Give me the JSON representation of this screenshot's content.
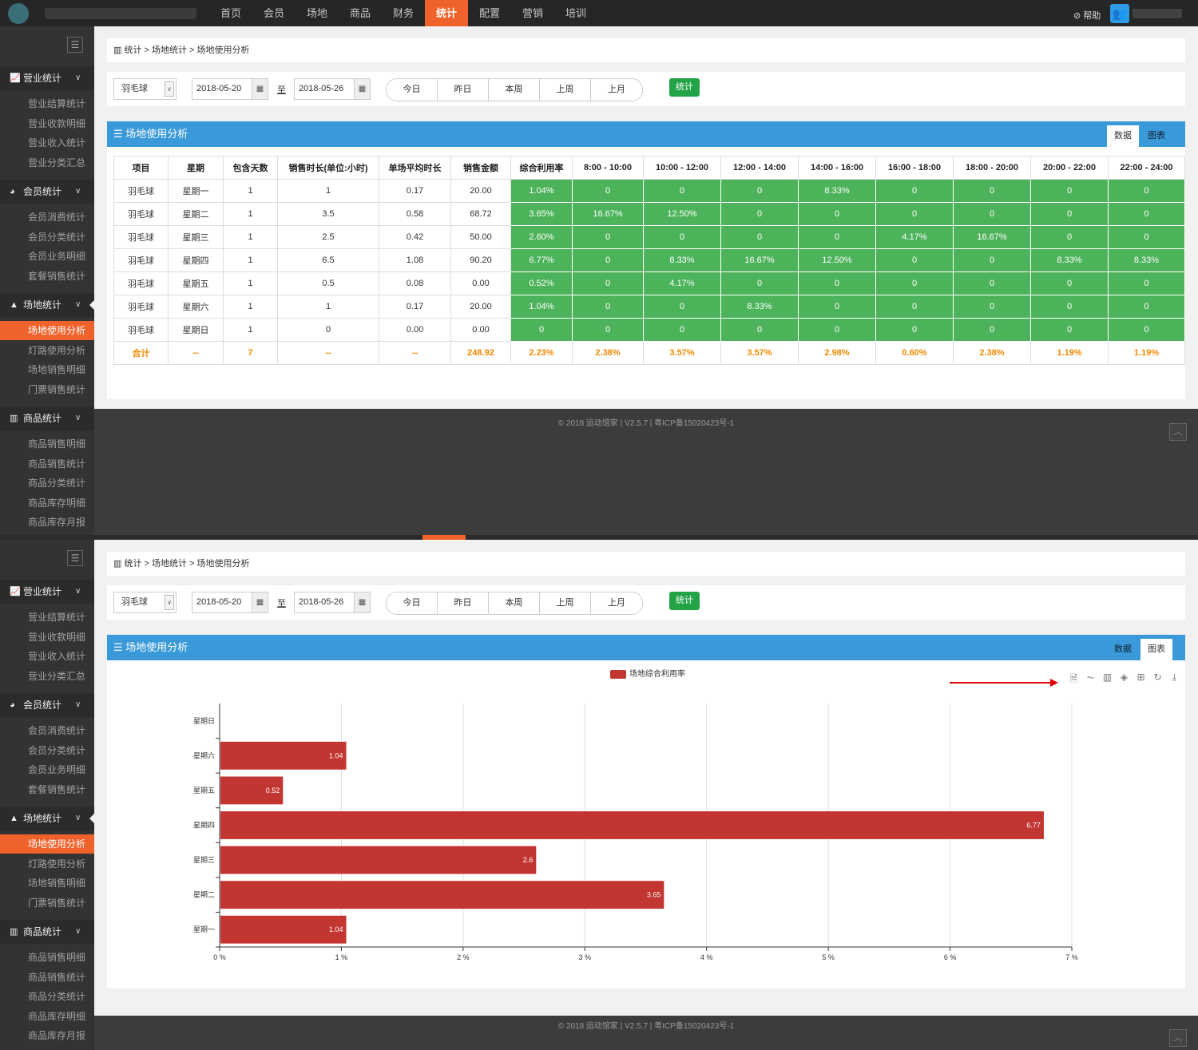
{
  "nav": [
    "首页",
    "会员",
    "场地",
    "商品",
    "财务",
    "统计",
    "配置",
    "营销",
    "培训"
  ],
  "nav_active": 5,
  "help": "⊘ 帮助",
  "sidebar": {
    "toggle": "☰",
    "groups": [
      {
        "icon": "line-chart-icon",
        "glyph": "📈",
        "label": "营业统计",
        "items": [
          "营业结算统计",
          "营业收款明细",
          "营业收入统计",
          "营业分类汇总"
        ]
      },
      {
        "icon": "pie-chart-icon",
        "glyph": "◕",
        "label": "会员统计",
        "items": [
          "会员消费统计",
          "会员分类统计",
          "会员业务明细",
          "套餐销售统计"
        ]
      },
      {
        "icon": "area-chart-icon",
        "glyph": "▲",
        "label": "场地统计",
        "items": [
          "场地使用分析",
          "灯路使用分析",
          "场地销售明细",
          "门票销售统计"
        ]
      },
      {
        "icon": "bar-chart-icon",
        "glyph": "▥",
        "label": "商品统计",
        "items": [
          "商品销售明细",
          "商品销售统计",
          "商品分类统计",
          "商品库存明细",
          "商品库存月报"
        ]
      }
    ],
    "active_item": "场地使用分析"
  },
  "breadcrumb": "▥ 统计 > 场地统计 > 场地使用分析",
  "filter": {
    "sport": "羽毛球",
    "start": "2018-05-20",
    "to": "至",
    "end": "2018-05-26",
    "quick": [
      "今日",
      "昨日",
      "本周",
      "上周",
      "上月"
    ],
    "submit": "统计"
  },
  "panel": {
    "title": "☰ 场地使用分析",
    "tab_data": "数据",
    "tab_chart": "图表"
  },
  "table": {
    "headers": [
      "项目",
      "星期",
      "包含天数",
      "销售时长(单位:小时)",
      "单场平均时长",
      "销售金额",
      "综合利用率",
      "8:00 - 10:00",
      "10:00 - 12:00",
      "12:00 - 14:00",
      "14:00 - 16:00",
      "16:00 - 18:00",
      "18:00 - 20:00",
      "20:00 - 22:00",
      "22:00 - 24:00"
    ],
    "rows": [
      [
        "羽毛球",
        "星期一",
        "1",
        "1",
        "0.17",
        "20.00",
        "1.04%",
        "0",
        "0",
        "0",
        "8.33%",
        "0",
        "0",
        "0",
        "0"
      ],
      [
        "羽毛球",
        "星期二",
        "1",
        "3.5",
        "0.58",
        "68.72",
        "3.65%",
        "16.67%",
        "12.50%",
        "0",
        "0",
        "0",
        "0",
        "0",
        "0"
      ],
      [
        "羽毛球",
        "星期三",
        "1",
        "2.5",
        "0.42",
        "50.00",
        "2.60%",
        "0",
        "0",
        "0",
        "0",
        "4.17%",
        "16.67%",
        "0",
        "0"
      ],
      [
        "羽毛球",
        "星期四",
        "1",
        "6.5",
        "1.08",
        "90.20",
        "6.77%",
        "0",
        "8.33%",
        "16.67%",
        "12.50%",
        "0",
        "0",
        "8.33%",
        "8.33%"
      ],
      [
        "羽毛球",
        "星期五",
        "1",
        "0.5",
        "0.08",
        "0.00",
        "0.52%",
        "0",
        "4.17%",
        "0",
        "0",
        "0",
        "0",
        "0",
        "0"
      ],
      [
        "羽毛球",
        "星期六",
        "1",
        "1",
        "0.17",
        "20.00",
        "1.04%",
        "0",
        "0",
        "8.33%",
        "0",
        "0",
        "0",
        "0",
        "0"
      ],
      [
        "羽毛球",
        "星期日",
        "1",
        "0",
        "0.00",
        "0.00",
        "0",
        "0",
        "0",
        "0",
        "0",
        "0",
        "0",
        "0",
        "0"
      ]
    ],
    "total": [
      "合计",
      "--",
      "7",
      "--",
      "--",
      "248.92",
      "2.23%",
      "2.38%",
      "3.57%",
      "3.57%",
      "2.98%",
      "0.60%",
      "2.38%",
      "1.19%",
      "1.19%"
    ]
  },
  "footer": "© 2018 运动馆家 | V2.5.7 | 粤ICP备15020423号-1",
  "totop": "︿",
  "colors": {
    "accent": "#f0622b",
    "panel": "#3a9ad9",
    "cell_green": "#4db35a",
    "bar": "#c23531",
    "submit": "#21a346"
  },
  "toolbox": [
    {
      "icon": "data-view-icon",
      "glyph": "🗎"
    },
    {
      "icon": "line-switch-icon",
      "glyph": "⏦"
    },
    {
      "icon": "bar-switch-icon",
      "glyph": "▥"
    },
    {
      "icon": "stack-icon",
      "glyph": "◈"
    },
    {
      "icon": "tiled-icon",
      "glyph": "⊞"
    },
    {
      "icon": "restore-icon",
      "glyph": "↻"
    },
    {
      "icon": "save-image-icon",
      "glyph": "⤓"
    }
  ],
  "chart_data": {
    "type": "bar",
    "orientation": "horizontal",
    "legend": [
      "场地综合利用率"
    ],
    "legend_position": "top-center",
    "categories": [
      "星期一",
      "星期二",
      "星期三",
      "星期四",
      "星期五",
      "星期六",
      "星期日"
    ],
    "series": [
      {
        "name": "场地综合利用率",
        "values": [
          1.04,
          3.65,
          2.6,
          6.77,
          0.52,
          1.04,
          0
        ]
      }
    ],
    "xlim": [
      0,
      7
    ],
    "xticks": [
      "0 %",
      "1 %",
      "2 %",
      "3 %",
      "4 %",
      "5 %",
      "6 %",
      "7 %"
    ],
    "grid": "vertical",
    "data_labels": true
  }
}
